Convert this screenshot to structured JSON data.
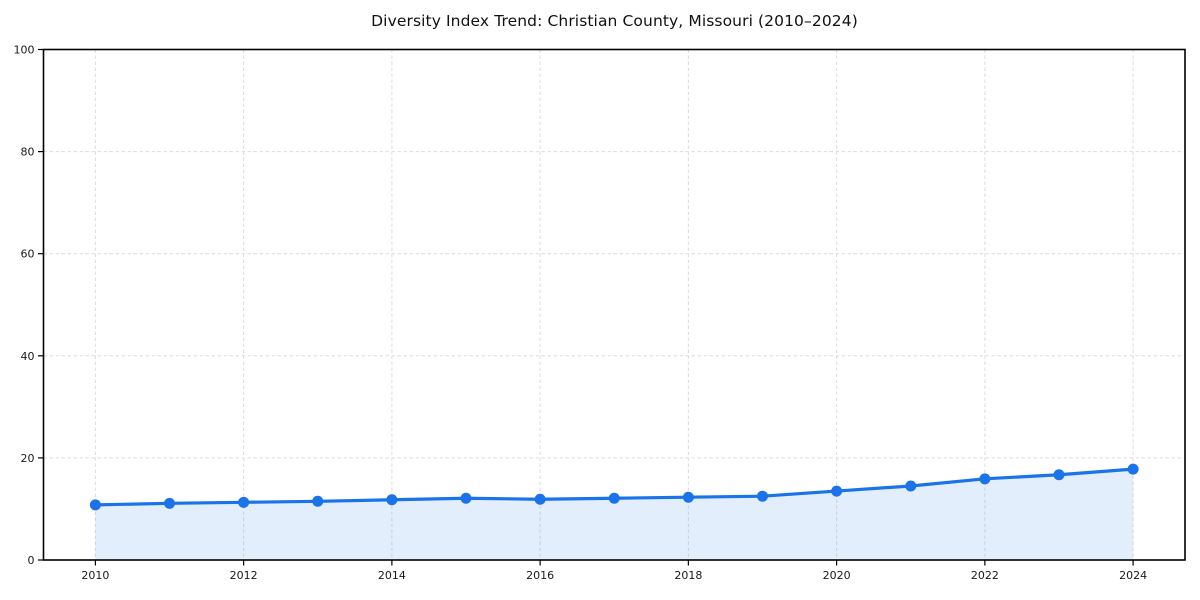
{
  "page": {
    "background": "#ffffff"
  },
  "chart_data": {
    "type": "line",
    "title": "Diversity Index Trend: Christian County, Missouri (2010–2024)",
    "xlabel": "",
    "ylabel": "",
    "x": [
      2010,
      2011,
      2012,
      2013,
      2014,
      2015,
      2016,
      2017,
      2018,
      2019,
      2020,
      2021,
      2022,
      2023,
      2024
    ],
    "series": [
      {
        "name": "Diversity Index",
        "values": [
          10.8,
          11.1,
          11.3,
          11.5,
          11.8,
          12.1,
          11.9,
          12.1,
          12.3,
          12.5,
          13.5,
          14.5,
          15.9,
          16.7,
          17.8
        ]
      }
    ],
    "xlim": [
      2009.3,
      2024.7
    ],
    "ylim": [
      0,
      100
    ],
    "x_ticks": [
      2010,
      2012,
      2014,
      2016,
      2018,
      2020,
      2022,
      2024
    ],
    "y_ticks": [
      0,
      20,
      40,
      60,
      80,
      100
    ],
    "grid": true,
    "grid_style": "dashed",
    "legend": "none",
    "area_fill": true,
    "marker": "circle",
    "colors": {
      "line": "#1a73e8",
      "marker": "#1a73e8",
      "fill": "#1a73e8",
      "fill_opacity": 0.12,
      "grid": "#dcdcdc",
      "axis": "#000000",
      "text": "#1a1a1a"
    }
  }
}
